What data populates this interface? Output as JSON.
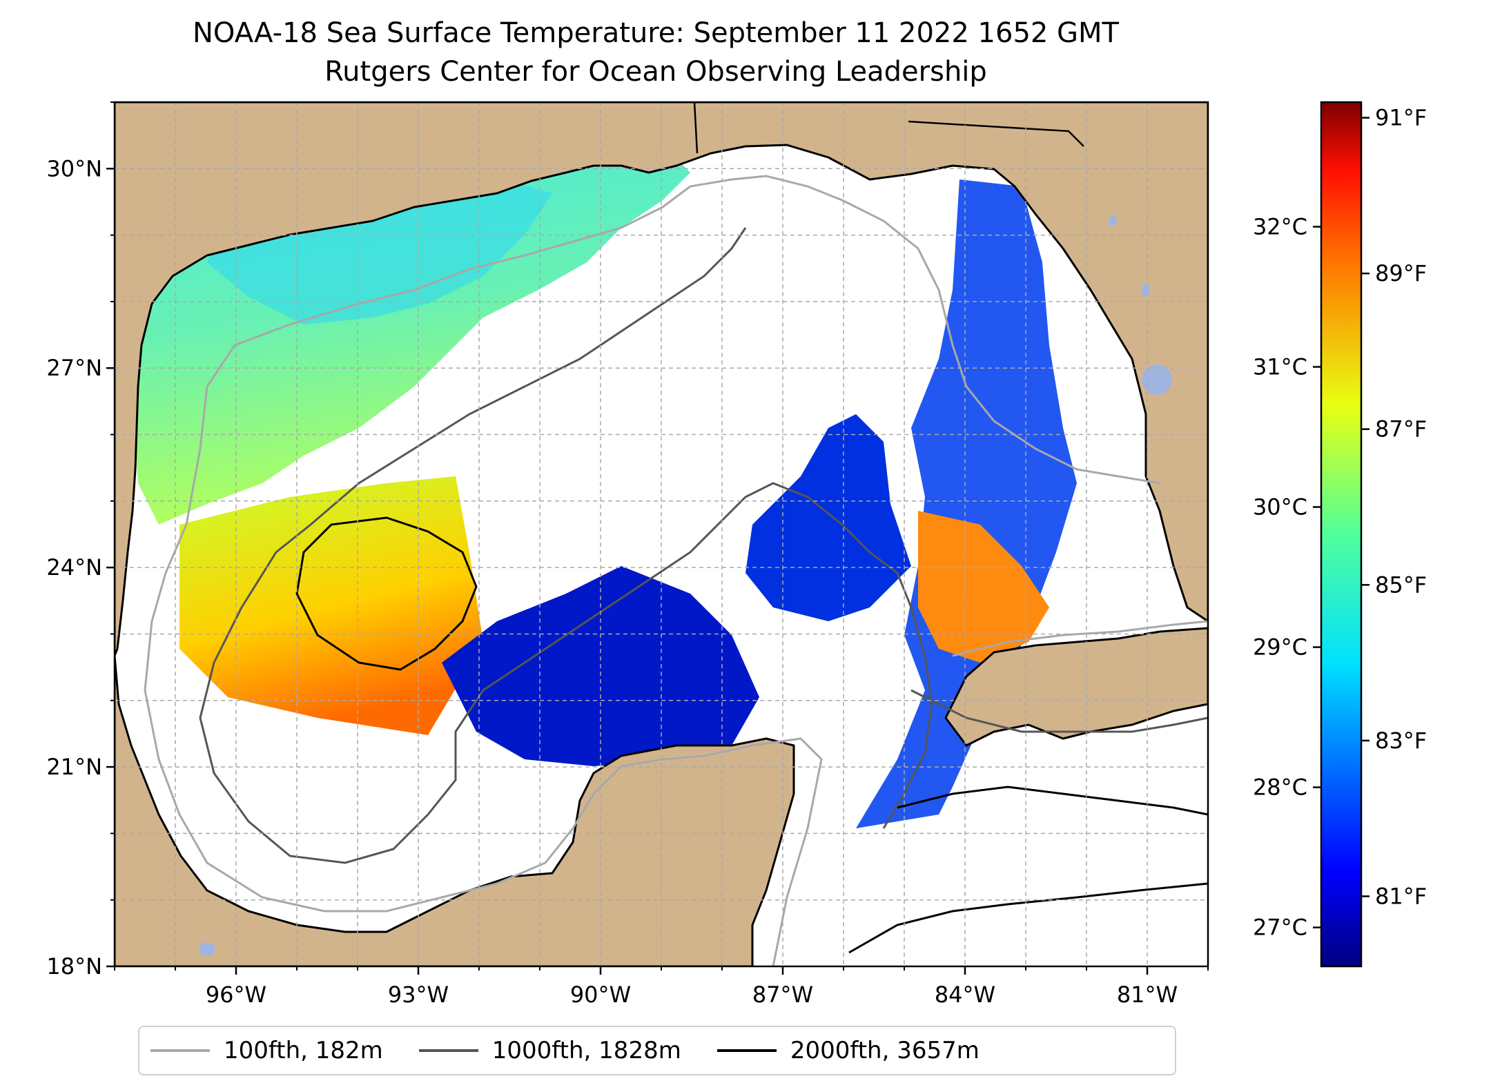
{
  "title": {
    "line1": "NOAA-18 Sea Surface Temperature: September 11 2022 1652 GMT",
    "line2": "Rutgers Center for Ocean Observing Leadership"
  },
  "map": {
    "extent": {
      "lon_min": -98.0,
      "lon_max": -80.0,
      "lat_min": 18.0,
      "lat_max": 31.0
    },
    "lon_ticks": [
      {
        "value": -96,
        "label": "96°W"
      },
      {
        "value": -93,
        "label": "93°W"
      },
      {
        "value": -90,
        "label": "90°W"
      },
      {
        "value": -87,
        "label": "87°W"
      },
      {
        "value": -84,
        "label": "84°W"
      },
      {
        "value": -81,
        "label": "81°W"
      }
    ],
    "lat_ticks": [
      {
        "value": 18,
        "label": "18°N"
      },
      {
        "value": 21,
        "label": "21°N"
      },
      {
        "value": 24,
        "label": "24°N"
      },
      {
        "value": 27,
        "label": "27°N"
      },
      {
        "value": 30,
        "label": "30°N"
      }
    ],
    "grid": true,
    "colors": {
      "land": "#d2b48c",
      "water": "#ffffff",
      "lakes": "#a0b4e0",
      "grid": "#aaaaaa"
    },
    "colormap": "jet"
  },
  "colorbar": {
    "fahrenheit_range": [
      80.1,
      91.2
    ],
    "fahrenheit_ticks": [
      {
        "value": 81,
        "label": "81°F"
      },
      {
        "value": 83,
        "label": "83°F"
      },
      {
        "value": 85,
        "label": "85°F"
      },
      {
        "value": 87,
        "label": "87°F"
      },
      {
        "value": 89,
        "label": "89°F"
      },
      {
        "value": 91,
        "label": "91°F"
      }
    ],
    "celsius_ticks": [
      {
        "value": 27,
        "label": "27°C"
      },
      {
        "value": 28,
        "label": "28°C"
      },
      {
        "value": 29,
        "label": "29°C"
      },
      {
        "value": 30,
        "label": "30°C"
      },
      {
        "value": 31,
        "label": "31°C"
      },
      {
        "value": 32,
        "label": "32°C"
      }
    ]
  },
  "legend": {
    "items": [
      {
        "label": "100fth, 182m",
        "color": "#a8a8a8"
      },
      {
        "label": "1000fth, 1828m",
        "color": "#555555"
      },
      {
        "label": "2000fth, 3657m",
        "color": "#000000"
      }
    ]
  }
}
